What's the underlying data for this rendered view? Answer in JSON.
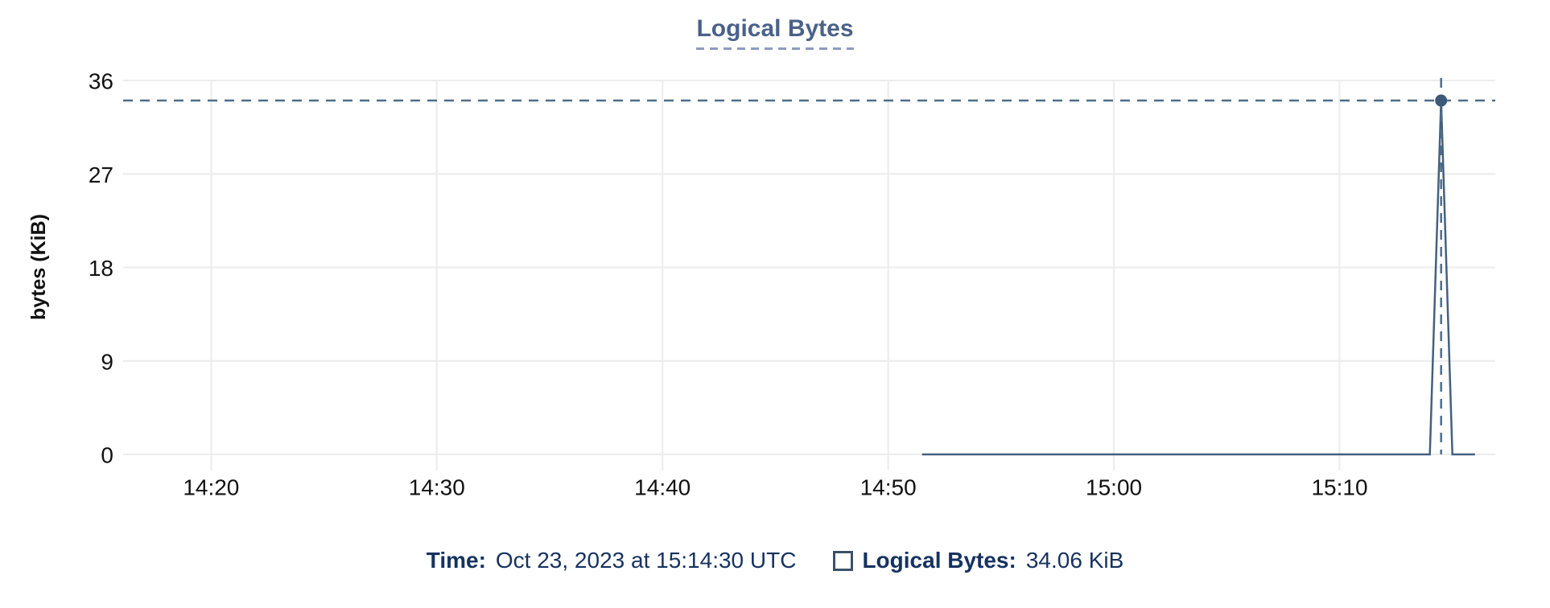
{
  "chart": {
    "title": "Logical Bytes",
    "y_axis_label": "bytes (KiB)"
  },
  "legend": {
    "time_label": "Time:",
    "time_value": "Oct 23, 2023 at 15:14:30 UTC",
    "series_label": "Logical Bytes:",
    "series_value": "34.06 KiB"
  },
  "colors": {
    "title": "#4a6188",
    "title_underline": "#8c9cc0",
    "legend_text": "#16325f",
    "swatch_border": "#3d5168",
    "line": "#44607e",
    "marker": "#3e5878",
    "crosshair": "#4e6d8a",
    "gridline": "#ececec",
    "tick_label": "#111111"
  },
  "chart_data": {
    "type": "line",
    "title": "Logical Bytes",
    "xlabel": "",
    "ylabel": "bytes (KiB)",
    "x_ticks": [
      "14:20",
      "14:30",
      "14:40",
      "14:50",
      "15:00",
      "15:10"
    ],
    "y_ticks": [
      0,
      9,
      18,
      27,
      36
    ],
    "ylim": [
      0,
      36
    ],
    "xlim_minutes": [
      856.1,
      916.9
    ],
    "grid": true,
    "legend_position": "bottom-center",
    "series": [
      {
        "name": "Logical Bytes",
        "points": [
          [
            "14:51:30",
            0
          ],
          [
            "15:14:00",
            0
          ],
          [
            "15:14:30",
            34.06
          ],
          [
            "15:15:00",
            0
          ],
          [
            "15:16:00",
            0
          ]
        ]
      }
    ],
    "hover": {
      "time": "15:14:30",
      "value": 34.06,
      "value_display": "34.06 KiB",
      "crosshair": true
    }
  }
}
